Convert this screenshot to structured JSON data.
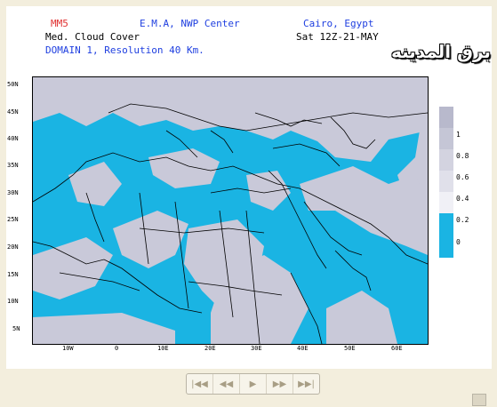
{
  "header": {
    "model": "MM5",
    "center": "E.M.A, NWP Center",
    "location": "Cairo, Egypt",
    "field": "Med. Cloud Cover",
    "time": "Sat 12Z-21-MAY",
    "domain": "DOMAIN 1, Resolution 40 Km."
  },
  "watermark": "برق المدينه",
  "lat_labels": [
    "50N",
    "45N",
    "40N",
    "35N",
    "30N",
    "25N",
    "20N",
    "15N",
    "10N",
    "5N"
  ],
  "lon_labels": [
    "10W",
    "0",
    "10E",
    "20E",
    "30E",
    "40E",
    "50E",
    "60E"
  ],
  "colorbar": {
    "labels": [
      "1",
      "0.8",
      "0.6",
      "0.4",
      "0.2",
      "0"
    ],
    "colors": [
      "#b8b9cc",
      "#c5c6d6",
      "#d3d3e0",
      "#e0e0ea",
      "#f0f0f6",
      "#1ab4e3"
    ]
  },
  "navigation": {
    "first": "first-frame",
    "prev": "previous-frame",
    "play": "play",
    "next": "next-frame",
    "last": "last-frame"
  },
  "colors": {
    "cloud": "#c9c9d9",
    "clear": "#1ab4e3",
    "page": "#f3eedd"
  }
}
